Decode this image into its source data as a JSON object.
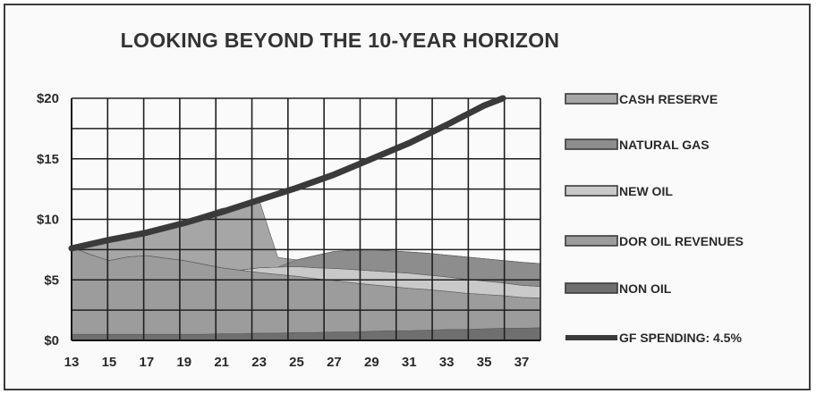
{
  "chart_data": {
    "type": "area",
    "title": "LOOKING BEYOND THE 10-YEAR HORIZON",
    "xlabel": "",
    "ylabel": "",
    "x": [
      13,
      14,
      15,
      16,
      17,
      18,
      19,
      20,
      21,
      22,
      23,
      24,
      25,
      26,
      27,
      28,
      29,
      30,
      31,
      32,
      33,
      34,
      35,
      36,
      37,
      38
    ],
    "x_ticks": [
      "13",
      "15",
      "17",
      "19",
      "21",
      "23",
      "25",
      "27",
      "29",
      "31",
      "33",
      "35",
      "37"
    ],
    "y_ticks": [
      "$0",
      "$5",
      "$10",
      "$15",
      "$20"
    ],
    "ylim": [
      0,
      20
    ],
    "xlim": [
      13,
      38
    ],
    "grid": true,
    "legend_position": "right",
    "stacked_series": [
      {
        "name": "NON OIL",
        "color": "#6f6f6f",
        "values": [
          0.5,
          0.5,
          0.5,
          0.5,
          0.5,
          0.5,
          0.5,
          0.5,
          0.55,
          0.55,
          0.6,
          0.6,
          0.65,
          0.65,
          0.7,
          0.7,
          0.75,
          0.8,
          0.8,
          0.85,
          0.9,
          0.9,
          0.95,
          1.0,
          1.0,
          1.05
        ]
      },
      {
        "name": "DOR OIL REVENUES",
        "color": "#9c9c9c",
        "values": [
          7.2,
          6.6,
          6.1,
          6.4,
          6.5,
          6.3,
          6.1,
          5.8,
          5.45,
          5.25,
          5.0,
          4.85,
          4.65,
          4.45,
          4.25,
          4.05,
          3.85,
          3.65,
          3.5,
          3.35,
          3.15,
          3.0,
          2.85,
          2.7,
          2.55,
          2.45
        ]
      },
      {
        "name": "NEW OIL",
        "color": "#c9c9c9",
        "values": [
          0,
          0,
          0,
          0,
          0,
          0,
          0,
          0,
          0,
          0,
          0.4,
          0.6,
          0.8,
          0.9,
          1.0,
          1.1,
          1.15,
          1.2,
          1.25,
          1.2,
          1.2,
          1.15,
          1.1,
          1.05,
          1.0,
          0.95
        ]
      },
      {
        "name": "NATURAL GAS",
        "color": "#8d8d8d",
        "values": [
          0,
          0,
          0,
          0,
          0,
          0,
          0,
          0,
          0,
          0,
          0,
          0,
          0.55,
          1.0,
          1.4,
          1.6,
          1.75,
          1.75,
          1.75,
          1.8,
          1.8,
          1.85,
          1.85,
          1.85,
          1.9,
          1.9
        ]
      },
      {
        "name": "CASH RESERVE",
        "color": "#a6a6a6",
        "values": [
          0,
          0.9,
          1.7,
          1.5,
          1.9,
          2.6,
          3.3,
          4.1,
          4.9,
          5.3,
          5.6,
          0.8,
          0,
          0,
          0,
          0,
          0,
          0,
          0,
          0,
          0,
          0,
          0,
          0,
          0,
          0
        ]
      }
    ],
    "line_series": [
      {
        "name": "GF SPENDING: 4.5%",
        "color": "#3a3a3a",
        "x": [
          13,
          15,
          17,
          19,
          21,
          23,
          25,
          27,
          29,
          31,
          33,
          35,
          36
        ],
        "values": [
          7.6,
          8.3,
          8.9,
          9.7,
          10.6,
          11.6,
          12.6,
          13.7,
          15.0,
          16.3,
          17.8,
          19.4,
          20.0
        ]
      }
    ],
    "legend": [
      "CASH RESERVE",
      "NATURAL GAS",
      "NEW OIL",
      "DOR OIL REVENUES",
      "NON OIL",
      "GF SPENDING: 4.5%"
    ]
  },
  "colors": {
    "background": "#fafafa",
    "grid": "#1f1f1f",
    "text": "#2a2a2a"
  }
}
